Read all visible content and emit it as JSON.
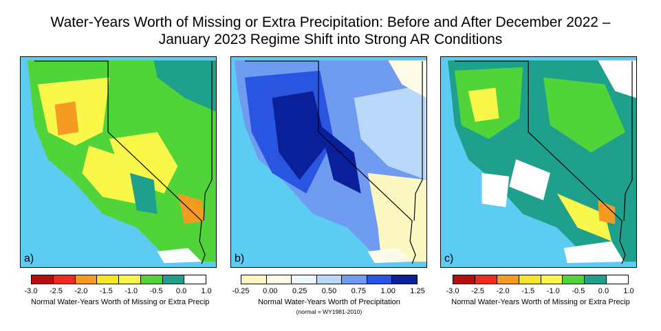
{
  "title_line1": "Water-Years Worth of Missing or Extra Precipitation: Before and After December 2022 –",
  "title_line2": "January 2023 Regime Shift into Strong AR Conditions",
  "panels": [
    {
      "label": "a)",
      "palette": "deficit"
    },
    {
      "label": "b)",
      "palette": "normal"
    },
    {
      "label": "c)",
      "palette": "deficit"
    }
  ],
  "colorbar_deficit": {
    "ticks": [
      "-3.0",
      "-2.5",
      "-2.0",
      "-1.5",
      "-1.0",
      "-0.5",
      "0.0",
      "1.0"
    ],
    "colors": [
      "#b30f0f",
      "#f02a1e",
      "#f59b22",
      "#f5e628",
      "#f9f84a",
      "#51d43a",
      "#1fa08c",
      "#ffffff"
    ],
    "caption": "Normal Water-Years Worth of Missing or Extra Precip"
  },
  "colorbar_normal": {
    "ticks": [
      "-0.25",
      "0.00",
      "0.25",
      "0.50",
      "0.75",
      "1.00",
      "1.25"
    ],
    "colors": [
      "#fdf7c2",
      "#fefce8",
      "#eef6ff",
      "#b9d8fa",
      "#6f9bf0",
      "#2a55e0",
      "#0a1f9a"
    ],
    "caption": "Normal Water-Years Worth of Precipitation",
    "subcaption": "(normal = WY1981-2010)"
  }
}
